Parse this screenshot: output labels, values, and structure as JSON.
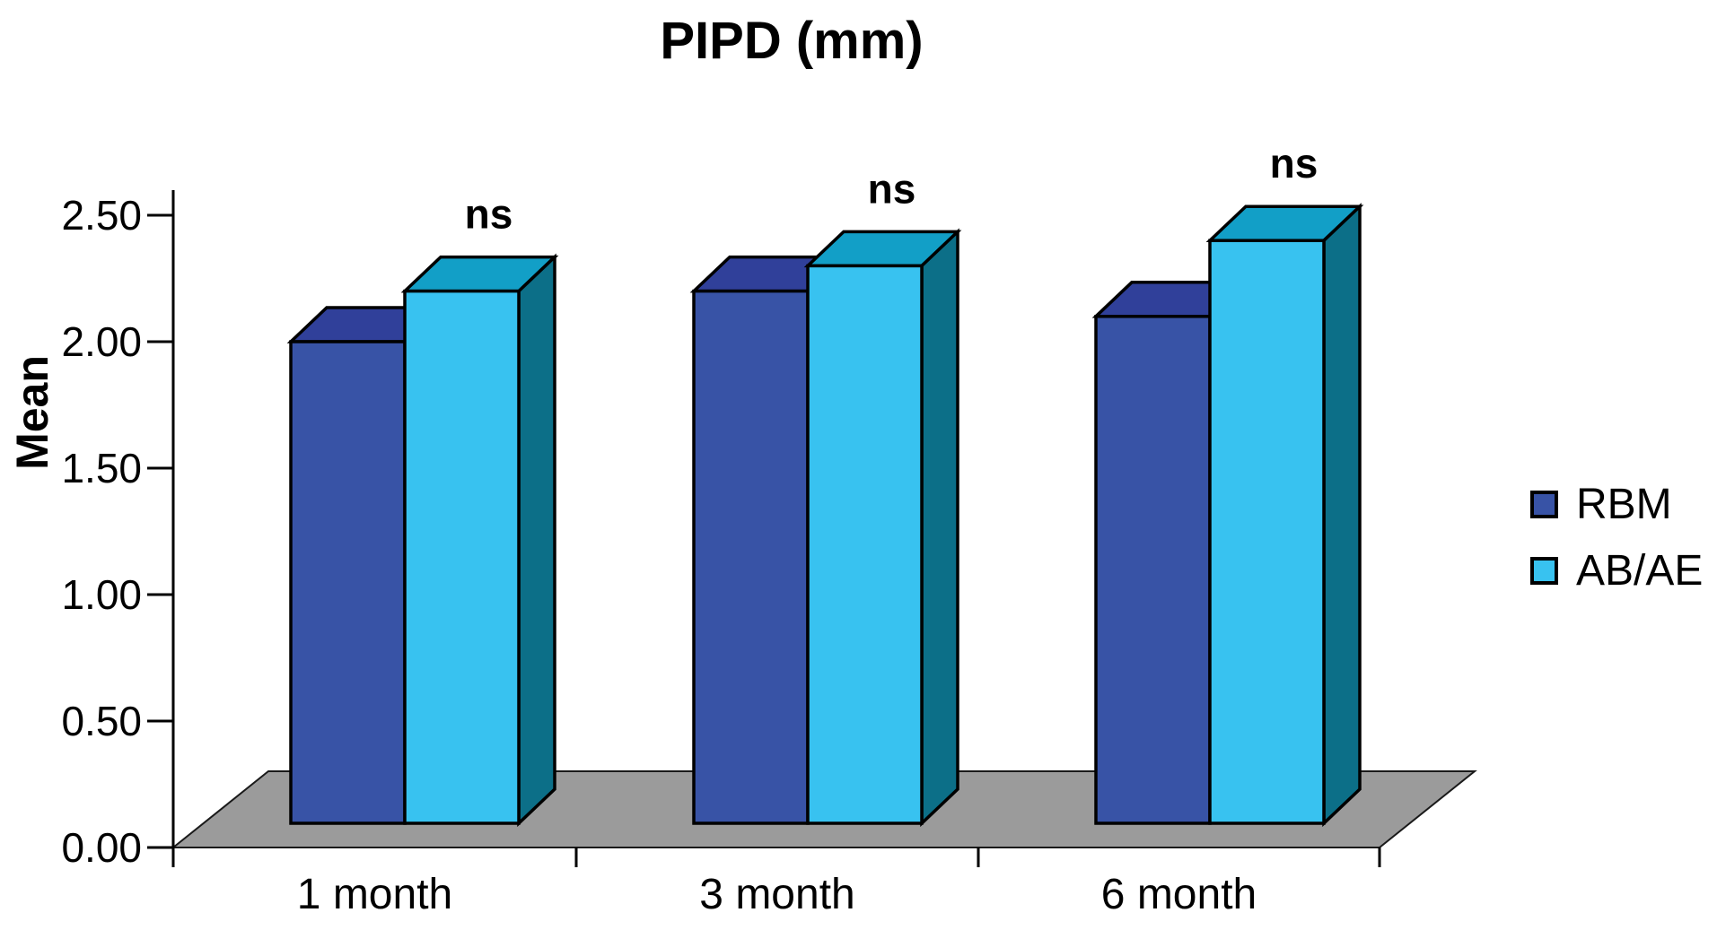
{
  "title": "PIPD (mm)",
  "y_axis_title": "Mean",
  "chart_data": {
    "type": "bar",
    "style": "3d-extruded-columns",
    "title": "PIPD (mm)",
    "ylabel": "Mean",
    "xlabel": "",
    "categories": [
      "1 month",
      "3 month",
      "6 month"
    ],
    "series": [
      {
        "name": "RBM",
        "values": [
          2.0,
          2.2,
          2.1
        ],
        "color_front": "#3853A6",
        "color_top": "#30409A"
      },
      {
        "name": "AB/AE",
        "values": [
          2.2,
          2.3,
          2.4
        ],
        "color_front": "#38C2F0",
        "color_top": "#129FC7",
        "color_side": "#0C6F88"
      }
    ],
    "annotations": [
      {
        "category": "1 month",
        "text": "ns"
      },
      {
        "category": "3 month",
        "text": "ns"
      },
      {
        "category": "6 month",
        "text": "ns"
      }
    ],
    "ylim": [
      0,
      2.5
    ],
    "y_ticks": [
      "0.00",
      "0.50",
      "1.00",
      "1.50",
      "2.00",
      "2.50"
    ],
    "y_tick_values": [
      0,
      0.5,
      1.0,
      1.5,
      2.0,
      2.5
    ],
    "legend_position": "right",
    "grid": false,
    "floor_color": "#9B9B9B",
    "outline_color": "#000000",
    "background_color": "#FFFFFF",
    "text_color": "#000000"
  }
}
